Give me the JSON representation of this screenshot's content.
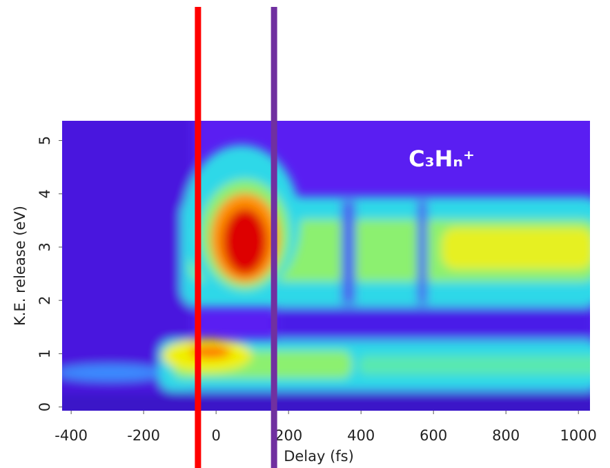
{
  "chart_data": {
    "type": "heatmap",
    "xlabel": "Delay (fs)",
    "ylabel": "K.E. release (eV)",
    "annotation": "C₃Hₙ⁺",
    "xlim": [
      -425,
      1032
    ],
    "ylim": [
      -0.07,
      5.37
    ],
    "xticks": [
      -400,
      -200,
      0,
      200,
      400,
      600,
      800,
      1000
    ],
    "yticks": [
      0,
      1,
      2,
      3,
      4,
      5
    ],
    "vlines": [
      {
        "value": -50,
        "color": "#ff0000"
      },
      {
        "value": 160,
        "color": "#7030a0"
      }
    ]
  }
}
